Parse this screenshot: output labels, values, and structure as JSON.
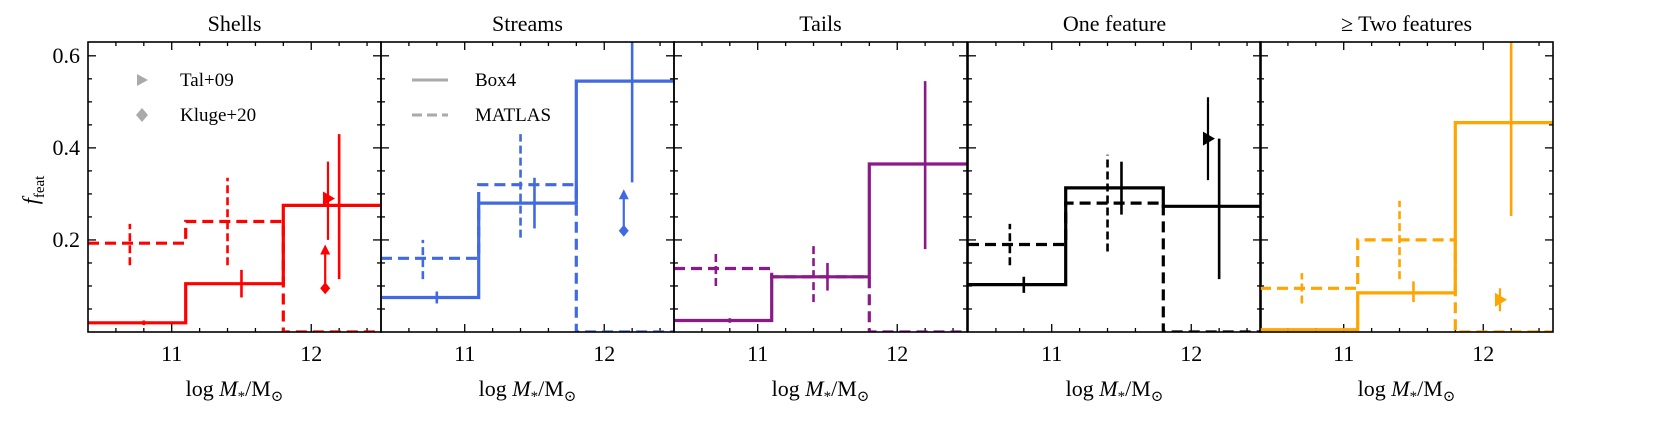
{
  "figure": {
    "ylabel_main": "f",
    "ylabel_sub": "feat",
    "xlabel_prefix": "log ",
    "xlabel_var": "M",
    "xlabel_var_sub": "*",
    "xlabel_suffix": "/M",
    "xlabel_suffix_sub": "⊙",
    "yticks": [
      "0.2",
      "0.4",
      "0.6"
    ],
    "xticks": [
      "11",
      "12"
    ]
  },
  "legend": {
    "markers": [
      {
        "label": "Tal+09",
        "icon": "triangle-right-icon",
        "color": "#aaaaaa"
      },
      {
        "label": "Kluge+20",
        "icon": "diamond-icon",
        "color": "#aaaaaa"
      }
    ],
    "lines": [
      {
        "label": "Box4",
        "style": "solid",
        "color": "#aaaaaa"
      },
      {
        "label": "MATLAS",
        "style": "dashed",
        "color": "#aaaaaa"
      }
    ]
  },
  "chart_data": [
    {
      "type": "step",
      "title": "Shells",
      "color": "#ff0000",
      "xlim": [
        10.4,
        12.5
      ],
      "ylim": [
        0,
        0.63
      ],
      "xlabel": "log M*/M⊙",
      "ylabel": "f_feat",
      "bin_edges": [
        10.4,
        11.1,
        11.8,
        12.5
      ],
      "series": [
        {
          "name": "Box4",
          "style": "solid",
          "values": [
            0.02,
            0.105,
            0.275
          ],
          "errbars": [
            {
              "x": 10.8,
              "y": 0.02,
              "lo": 0.015,
              "hi": 0.025
            },
            {
              "x": 11.5,
              "y": 0.105,
              "lo": 0.075,
              "hi": 0.135
            },
            {
              "x": 12.2,
              "y": 0.275,
              "lo": 0.115,
              "hi": 0.43
            }
          ]
        },
        {
          "name": "MATLAS",
          "style": "dashed",
          "values": [
            0.193,
            0.24,
            0.0
          ],
          "errbars": [
            {
              "x": 10.7,
              "y": 0.193,
              "lo": 0.145,
              "hi": 0.235
            },
            {
              "x": 11.4,
              "y": 0.24,
              "lo": 0.145,
              "hi": 0.335
            }
          ]
        }
      ],
      "observations": [
        {
          "name": "Tal+09",
          "marker": "triangle",
          "x": 12.12,
          "y": 0.29,
          "lo": 0.2,
          "hi": 0.37
        },
        {
          "name": "Kluge+20",
          "marker": "diamond",
          "x": 12.1,
          "y": 0.095,
          "lower_limit": true,
          "arrow_to": 0.19
        }
      ]
    },
    {
      "type": "step",
      "title": "Streams",
      "color": "#4169e1",
      "xlim": [
        10.4,
        12.5
      ],
      "ylim": [
        0,
        0.63
      ],
      "xlabel": "log M*/M⊙",
      "ylabel": "f_feat",
      "bin_edges": [
        10.4,
        11.1,
        11.8,
        12.5
      ],
      "series": [
        {
          "name": "Box4",
          "style": "solid",
          "values": [
            0.075,
            0.28,
            0.545
          ],
          "errbars": [
            {
              "x": 10.8,
              "y": 0.075,
              "lo": 0.062,
              "hi": 0.088
            },
            {
              "x": 11.5,
              "y": 0.28,
              "lo": 0.225,
              "hi": 0.335
            },
            {
              "x": 12.2,
              "y": 0.545,
              "lo": 0.325,
              "hi": 0.65
            }
          ]
        },
        {
          "name": "MATLAS",
          "style": "dashed",
          "values": [
            0.16,
            0.32,
            0.0
          ],
          "errbars": [
            {
              "x": 10.7,
              "y": 0.16,
              "lo": 0.115,
              "hi": 0.2
            },
            {
              "x": 11.4,
              "y": 0.32,
              "lo": 0.205,
              "hi": 0.43
            }
          ]
        }
      ],
      "observations": [
        {
          "name": "Kluge+20",
          "marker": "diamond",
          "x": 12.14,
          "y": 0.22,
          "lower_limit": true,
          "arrow_to": 0.31
        }
      ]
    },
    {
      "type": "step",
      "title": "Tails",
      "color": "#8b1a89",
      "xlim": [
        10.4,
        12.5
      ],
      "ylim": [
        0,
        0.63
      ],
      "xlabel": "log M*/M⊙",
      "ylabel": "f_feat",
      "bin_edges": [
        10.4,
        11.1,
        11.8,
        12.5
      ],
      "series": [
        {
          "name": "Box4",
          "style": "solid",
          "values": [
            0.025,
            0.12,
            0.365
          ],
          "errbars": [
            {
              "x": 10.8,
              "y": 0.025,
              "lo": 0.02,
              "hi": 0.03
            },
            {
              "x": 11.5,
              "y": 0.12,
              "lo": 0.09,
              "hi": 0.15
            },
            {
              "x": 12.2,
              "y": 0.365,
              "lo": 0.18,
              "hi": 0.545
            }
          ]
        },
        {
          "name": "MATLAS",
          "style": "dashed",
          "values": [
            0.138,
            0.12,
            0.0
          ],
          "errbars": [
            {
              "x": 10.7,
              "y": 0.138,
              "lo": 0.1,
              "hi": 0.175
            },
            {
              "x": 11.4,
              "y": 0.12,
              "lo": 0.065,
              "hi": 0.19
            }
          ]
        }
      ],
      "observations": []
    },
    {
      "type": "step",
      "title": "One feature",
      "color": "#000000",
      "xlim": [
        10.4,
        12.5
      ],
      "ylim": [
        0,
        0.63
      ],
      "xlabel": "log M*/M⊙",
      "ylabel": "f_feat",
      "bin_edges": [
        10.4,
        11.1,
        11.8,
        12.5
      ],
      "series": [
        {
          "name": "Box4",
          "style": "solid",
          "values": [
            0.103,
            0.313,
            0.273
          ],
          "errbars": [
            {
              "x": 10.8,
              "y": 0.103,
              "lo": 0.085,
              "hi": 0.12
            },
            {
              "x": 11.5,
              "y": 0.313,
              "lo": 0.255,
              "hi": 0.37
            },
            {
              "x": 12.2,
              "y": 0.273,
              "lo": 0.115,
              "hi": 0.42
            }
          ]
        },
        {
          "name": "MATLAS",
          "style": "dashed",
          "values": [
            0.19,
            0.28,
            0.0
          ],
          "errbars": [
            {
              "x": 10.7,
              "y": 0.19,
              "lo": 0.145,
              "hi": 0.235
            },
            {
              "x": 11.4,
              "y": 0.28,
              "lo": 0.175,
              "hi": 0.385
            }
          ]
        }
      ],
      "observations": [
        {
          "name": "Tal+09",
          "marker": "triangle",
          "x": 12.12,
          "y": 0.42,
          "lo": 0.33,
          "hi": 0.51
        }
      ]
    },
    {
      "type": "step",
      "title": "≥ Two features",
      "color": "#ffa500",
      "xlim": [
        10.4,
        12.5
      ],
      "ylim": [
        0,
        0.63
      ],
      "xlabel": "log M*/M⊙",
      "ylabel": "f_feat",
      "bin_edges": [
        10.4,
        11.1,
        11.8,
        12.5
      ],
      "series": [
        {
          "name": "Box4",
          "style": "solid",
          "values": [
            0.005,
            0.085,
            0.455
          ],
          "errbars": [
            {
              "x": 10.8,
              "y": 0.005,
              "lo": 0.003,
              "hi": 0.007
            },
            {
              "x": 11.5,
              "y": 0.085,
              "lo": 0.065,
              "hi": 0.11
            },
            {
              "x": 12.2,
              "y": 0.455,
              "lo": 0.252,
              "hi": 0.65
            }
          ]
        },
        {
          "name": "MATLAS",
          "style": "dashed",
          "values": [
            0.095,
            0.2,
            0.0
          ],
          "errbars": [
            {
              "x": 10.7,
              "y": 0.095,
              "lo": 0.062,
              "hi": 0.128
            },
            {
              "x": 11.4,
              "y": 0.2,
              "lo": 0.115,
              "hi": 0.285
            }
          ]
        }
      ],
      "observations": [
        {
          "name": "Tal+09",
          "marker": "triangle",
          "x": 12.12,
          "y": 0.07,
          "lo": 0.045,
          "hi": 0.095
        }
      ]
    }
  ]
}
